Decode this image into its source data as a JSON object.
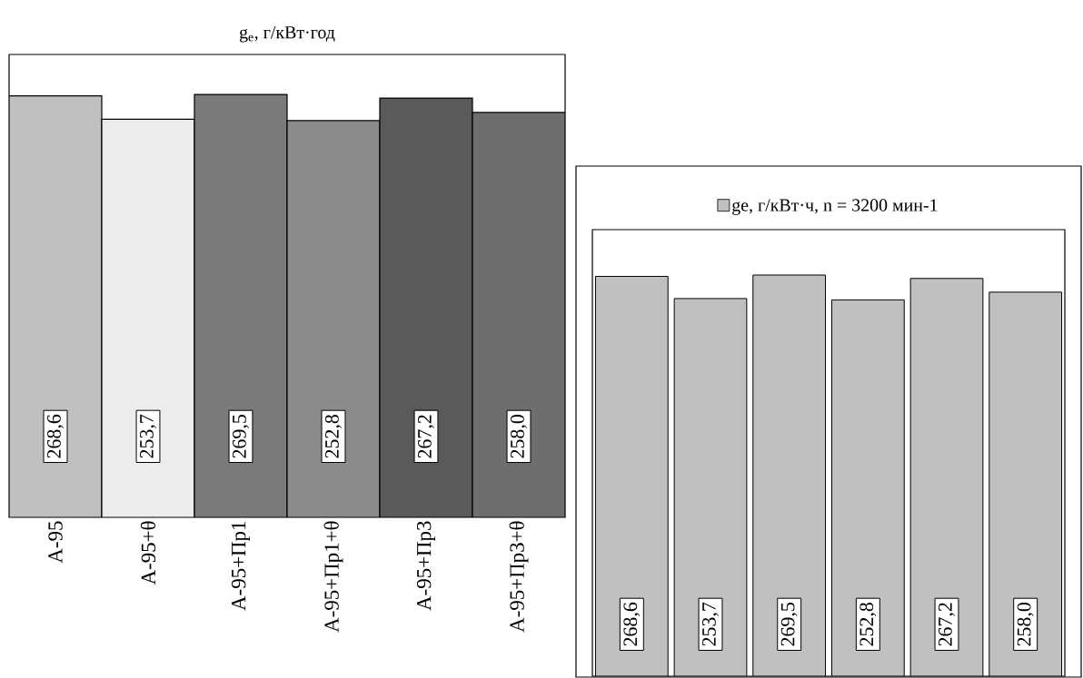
{
  "chart_data": [
    {
      "type": "bar",
      "title": "g$_{e}$, г/кВт·год",
      "categories": [
        "А-95",
        "А-95+θ",
        "А-95+Пр1",
        "А-95+Пр1+θ",
        "А-95+Пр3",
        "А-95+Пр3+θ"
      ],
      "values": [
        268.6,
        253.7,
        269.5,
        252.8,
        267.2,
        258.0
      ],
      "value_labels": [
        "268,6",
        "253,7",
        "269,5",
        "252,8",
        "267,2",
        "258,0"
      ],
      "colors": [
        "#c0c0c0",
        "#ececec",
        "#7a7a7a",
        "#8c8c8c",
        "#5a5a5a",
        "#6e6e6e"
      ],
      "ylim": [
        0,
        295
      ],
      "tick_labels": "x",
      "legend": false
    },
    {
      "type": "bar",
      "categories": [
        null,
        null,
        null,
        null,
        null,
        null
      ],
      "series": [
        {
          "name": "ge, г/кВт·ч, n = 3200 мин-1",
          "color": "#c0c0c0",
          "values": [
            268.6,
            253.7,
            269.5,
            252.8,
            267.2,
            258.0
          ],
          "value_labels": [
            "268,6",
            "253,7",
            "269,5",
            "252,8",
            "267,2",
            "258,0"
          ]
        }
      ],
      "ylim": [
        0,
        300
      ],
      "tick_labels": false,
      "legend": "top"
    }
  ]
}
